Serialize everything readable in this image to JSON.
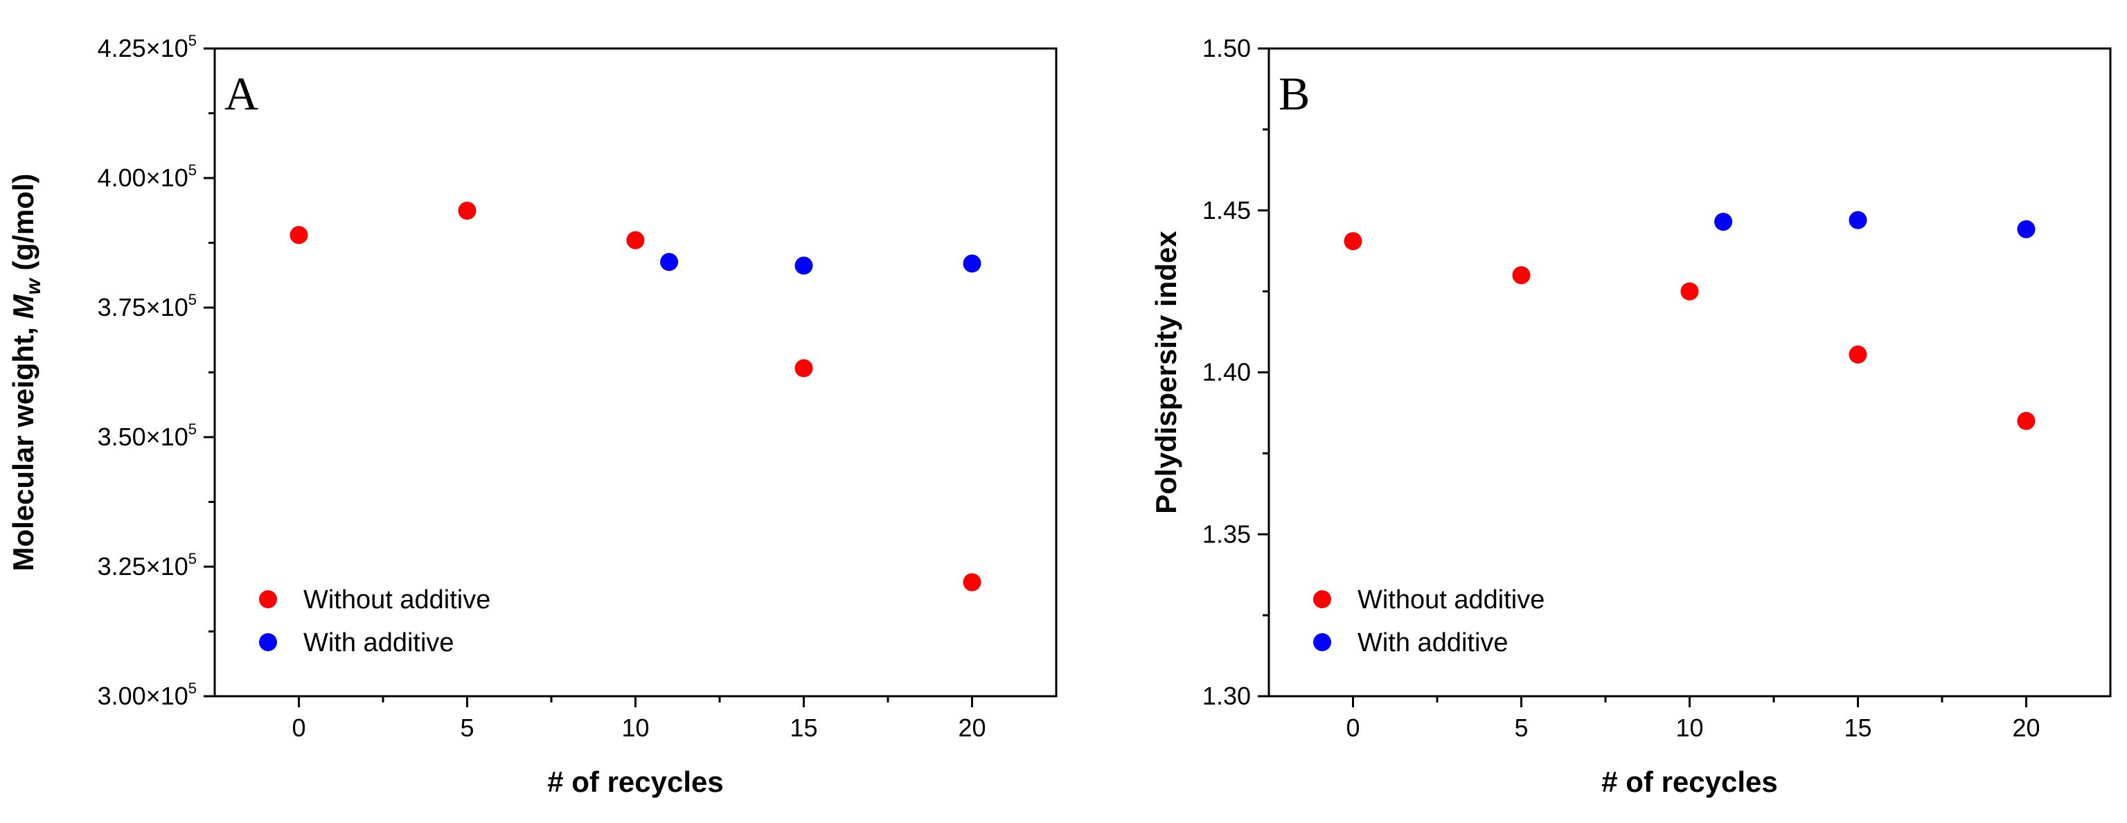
{
  "chart_data": [
    {
      "type": "scatter",
      "panel": "A",
      "xlabel": "# of recycles",
      "ylabel": {
        "prefix": "Molecular weight, ",
        "symbol": "M",
        "sub": "w",
        "suffix": " (g/mol)"
      },
      "xlim": [
        -2.5,
        22.5
      ],
      "ylim": [
        300000,
        425000
      ],
      "xticks": [
        0,
        5,
        10,
        15,
        20
      ],
      "xticklabels": [
        "0",
        "5",
        "10",
        "15",
        "20"
      ],
      "yticks": [
        300000,
        325000,
        350000,
        375000,
        400000,
        425000
      ],
      "yticklabels": [
        {
          "mant": "3.00×10",
          "exp": "5"
        },
        {
          "mant": "3.25×10",
          "exp": "5"
        },
        {
          "mant": "3.50×10",
          "exp": "5"
        },
        {
          "mant": "3.75×10",
          "exp": "5"
        },
        {
          "mant": "4.00×10",
          "exp": "5"
        },
        {
          "mant": "4.25×10",
          "exp": "5"
        }
      ],
      "series": [
        {
          "name": "Without additive",
          "color": "#ff0000",
          "x": [
            0,
            5,
            10,
            15,
            20
          ],
          "y": [
            389000,
            393700,
            388000,
            363300,
            322000
          ]
        },
        {
          "name": "With additive",
          "color": "#0000ff",
          "x": [
            11,
            15,
            20
          ],
          "y": [
            383800,
            383100,
            383500
          ]
        }
      ],
      "legend_position": "bottom-left"
    },
    {
      "type": "scatter",
      "panel": "B",
      "xlabel": "# of recycles",
      "ylabel": {
        "prefix": "Polydispersity index",
        "symbol": "",
        "sub": "",
        "suffix": ""
      },
      "xlim": [
        -2.5,
        22.5
      ],
      "ylim": [
        1.3,
        1.5
      ],
      "xticks": [
        0,
        5,
        10,
        15,
        20
      ],
      "xticklabels": [
        "0",
        "5",
        "10",
        "15",
        "20"
      ],
      "yticks": [
        1.3,
        1.35,
        1.4,
        1.45,
        1.5
      ],
      "yticklabels": [
        {
          "mant": "1.30",
          "exp": ""
        },
        {
          "mant": "1.35",
          "exp": ""
        },
        {
          "mant": "1.40",
          "exp": ""
        },
        {
          "mant": "1.45",
          "exp": ""
        },
        {
          "mant": "1.50",
          "exp": ""
        }
      ],
      "series": [
        {
          "name": "Without additive",
          "color": "#ff0000",
          "x": [
            0,
            5,
            10,
            15,
            20
          ],
          "y": [
            1.4405,
            1.43,
            1.425,
            1.4055,
            1.385
          ]
        },
        {
          "name": "With additive",
          "color": "#0000ff",
          "x": [
            11,
            15,
            20
          ],
          "y": [
            1.4465,
            1.447,
            1.4442
          ]
        }
      ],
      "legend_position": "bottom-left"
    }
  ]
}
